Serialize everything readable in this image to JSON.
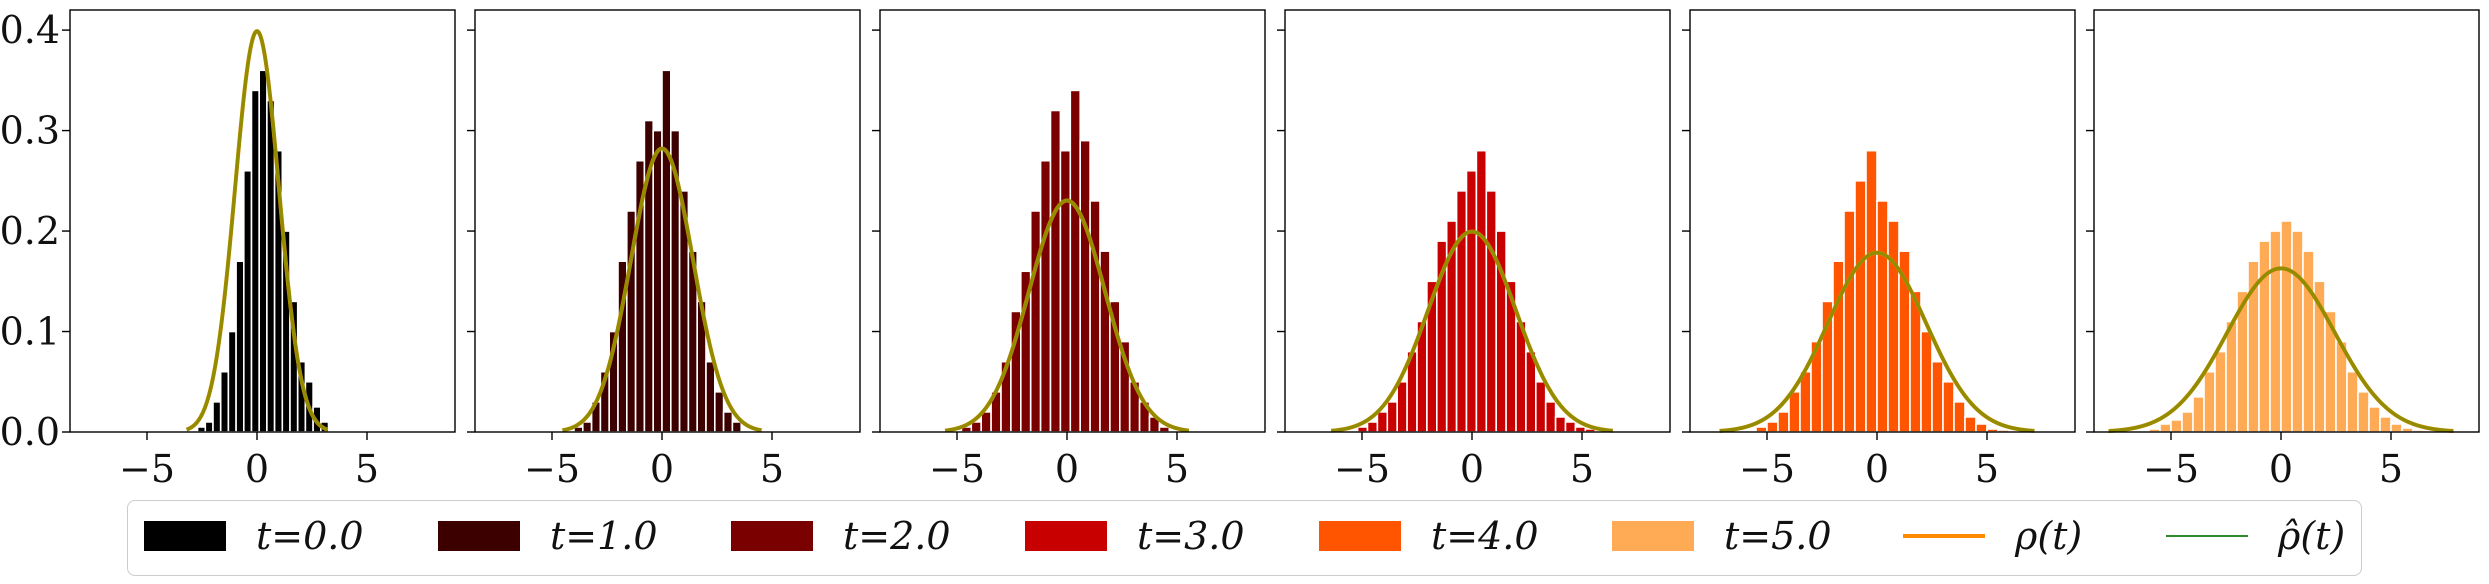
{
  "chart_data": {
    "type": "bar",
    "panels": [
      {
        "name": "t=0.0",
        "color": "#000000",
        "sigma": 1.0,
        "bins": [
          -2.7,
          -2.35,
          -2.0,
          -1.65,
          -1.3,
          -0.95,
          -0.6,
          -0.25,
          0.1,
          0.45,
          0.8,
          1.15,
          1.5,
          1.85,
          2.2,
          2.55,
          2.9,
          3.25
        ],
        "heights": [
          0.005,
          0.01,
          0.03,
          0.06,
          0.1,
          0.17,
          0.26,
          0.34,
          0.36,
          0.33,
          0.28,
          0.2,
          0.13,
          0.07,
          0.05,
          0.025,
          0.01
        ]
      },
      {
        "name": "t=1.0",
        "color": "#3d0000",
        "sigma": 1.414,
        "bins": [
          -4.0,
          -3.6,
          -3.2,
          -2.8,
          -2.4,
          -2.0,
          -1.6,
          -1.2,
          -0.8,
          -0.4,
          0.0,
          0.4,
          0.8,
          1.2,
          1.6,
          2.0,
          2.4,
          2.8,
          3.2,
          3.6
        ],
        "heights": [
          0.005,
          0.01,
          0.03,
          0.06,
          0.1,
          0.17,
          0.22,
          0.27,
          0.31,
          0.3,
          0.36,
          0.3,
          0.24,
          0.18,
          0.13,
          0.07,
          0.04,
          0.02,
          0.01
        ]
      },
      {
        "name": "t=2.0",
        "color": "#7a0000",
        "sigma": 1.732,
        "bins": [
          -4.8,
          -4.35,
          -3.9,
          -3.45,
          -3.0,
          -2.55,
          -2.1,
          -1.65,
          -1.2,
          -0.75,
          -0.3,
          0.15,
          0.6,
          1.05,
          1.5,
          1.95,
          2.4,
          2.85,
          3.3,
          3.75,
          4.2,
          4.65
        ],
        "heights": [
          0.005,
          0.01,
          0.02,
          0.04,
          0.07,
          0.12,
          0.16,
          0.22,
          0.27,
          0.32,
          0.28,
          0.34,
          0.29,
          0.23,
          0.18,
          0.13,
          0.09,
          0.05,
          0.03,
          0.015,
          0.005
        ]
      },
      {
        "name": "t=3.0",
        "color": "#c80000",
        "sigma": 2.0,
        "bins": [
          -5.2,
          -4.75,
          -4.3,
          -3.85,
          -3.4,
          -2.95,
          -2.5,
          -2.05,
          -1.6,
          -1.15,
          -0.7,
          -0.25,
          0.2,
          0.65,
          1.1,
          1.55,
          2.0,
          2.45,
          2.9,
          3.35,
          3.8,
          4.25,
          4.7,
          5.15,
          5.6
        ],
        "heights": [
          0.005,
          0.01,
          0.02,
          0.03,
          0.05,
          0.08,
          0.11,
          0.15,
          0.19,
          0.21,
          0.24,
          0.26,
          0.28,
          0.24,
          0.2,
          0.15,
          0.11,
          0.08,
          0.05,
          0.03,
          0.015,
          0.01,
          0.005,
          0.003
        ]
      },
      {
        "name": "t=4.0",
        "color": "#ff5500",
        "sigma": 2.236,
        "bins": [
          -5.5,
          -5.0,
          -4.5,
          -4.0,
          -3.5,
          -3.0,
          -2.5,
          -2.0,
          -1.5,
          -1.0,
          -0.5,
          0.0,
          0.5,
          1.0,
          1.5,
          2.0,
          2.5,
          3.0,
          3.5,
          4.0,
          4.5,
          5.0,
          5.5,
          6.0
        ],
        "heights": [
          0.005,
          0.01,
          0.02,
          0.04,
          0.06,
          0.09,
          0.13,
          0.17,
          0.22,
          0.25,
          0.28,
          0.23,
          0.21,
          0.18,
          0.14,
          0.1,
          0.07,
          0.05,
          0.03,
          0.015,
          0.008,
          0.003,
          0.002
        ]
      },
      {
        "name": "t=5.0",
        "color": "#ffaa55",
        "sigma": 2.449,
        "bins": [
          -6.0,
          -5.5,
          -5.0,
          -4.5,
          -4.0,
          -3.5,
          -3.0,
          -2.5,
          -2.0,
          -1.5,
          -1.0,
          -0.5,
          0.0,
          0.5,
          1.0,
          1.5,
          2.0,
          2.5,
          3.0,
          3.5,
          4.0,
          4.5,
          5.0,
          5.5,
          6.0,
          6.5
        ],
        "heights": [
          0.003,
          0.008,
          0.012,
          0.02,
          0.035,
          0.06,
          0.08,
          0.11,
          0.14,
          0.17,
          0.19,
          0.2,
          0.21,
          0.2,
          0.18,
          0.15,
          0.12,
          0.09,
          0.06,
          0.04,
          0.025,
          0.015,
          0.008,
          0.004,
          0.002
        ]
      }
    ],
    "curve_colors": {
      "rho": "#ff8c00",
      "rho_hat": "#2e8b2e",
      "overlap": "#8c8c00"
    },
    "xlim": [
      -8.5,
      9.0
    ],
    "ylim": [
      0,
      0.42
    ],
    "xticks": [
      -5,
      0,
      5
    ],
    "yticks": [
      0.0,
      0.1,
      0.2,
      0.3,
      0.4
    ],
    "xtick_labels": [
      "−5",
      "0",
      "5"
    ],
    "ytick_labels": [
      "0.0",
      "0.1",
      "0.2",
      "0.3",
      "0.4"
    ],
    "legend": [
      {
        "label": "t=0.0",
        "color": "#000000",
        "kind": "patch"
      },
      {
        "label": "t=1.0",
        "color": "#3d0000",
        "kind": "patch"
      },
      {
        "label": "t=2.0",
        "color": "#7a0000",
        "kind": "patch"
      },
      {
        "label": "t=3.0",
        "color": "#c80000",
        "kind": "patch"
      },
      {
        "label": "t=4.0",
        "color": "#ff5500",
        "kind": "patch"
      },
      {
        "label": "t=5.0",
        "color": "#ffaa55",
        "kind": "patch"
      },
      {
        "label": "ρ(t)",
        "color": "#ff8c00",
        "kind": "line"
      },
      {
        "label": "ρ̂(t)",
        "color": "#2e8b2e",
        "kind": "thinline"
      }
    ],
    "legend_placement": "bottom-center",
    "grid": false
  }
}
